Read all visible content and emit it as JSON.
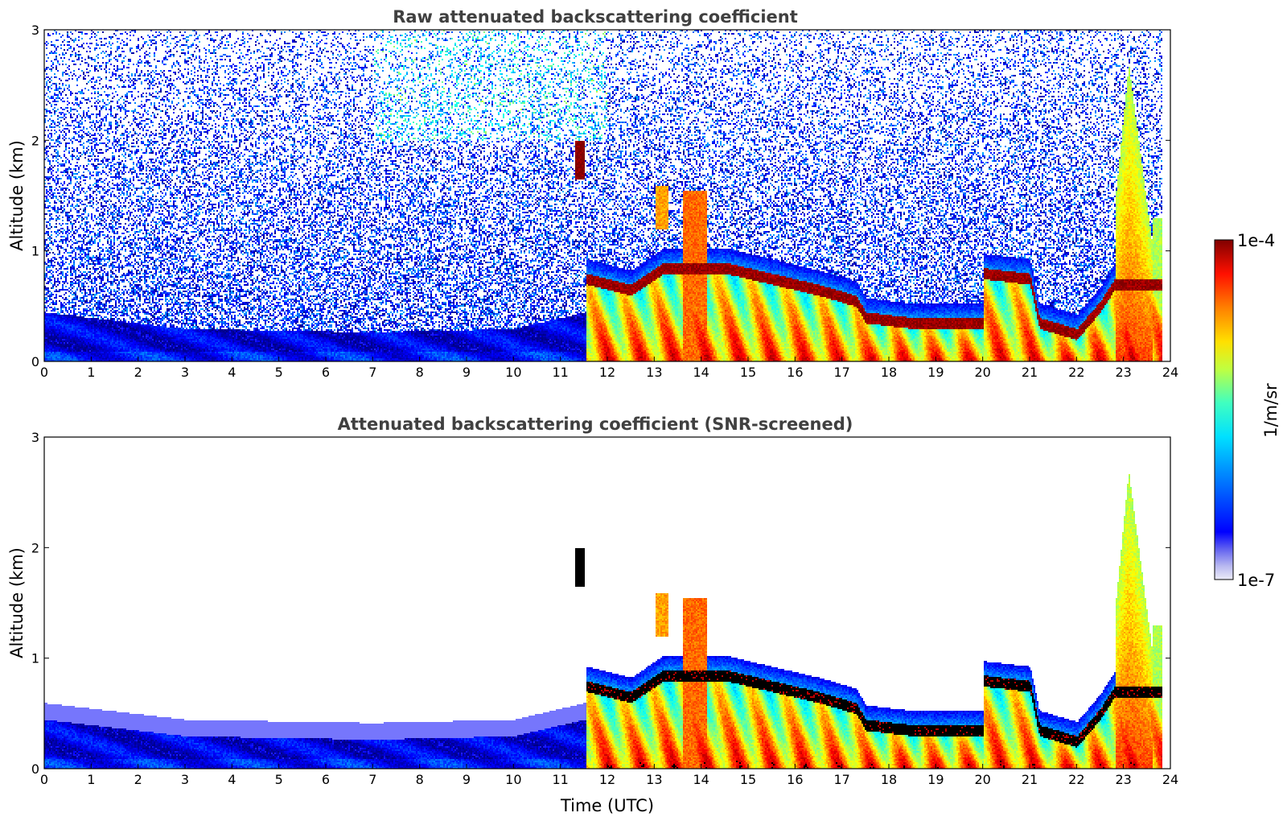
{
  "chart_data": [
    {
      "type": "heatmap",
      "title": "Raw attenuated backscattering coefficient",
      "xlabel": "",
      "ylabel": "Altitude (km)",
      "xlim": [
        0,
        24
      ],
      "ylim": [
        0,
        3
      ],
      "x_ticks": [
        "0",
        "1",
        "2",
        "3",
        "4",
        "5",
        "6",
        "7",
        "8",
        "9",
        "10",
        "11",
        "12",
        "13",
        "14",
        "15",
        "16",
        "17",
        "18",
        "19",
        "20",
        "21",
        "22",
        "23",
        "24"
      ],
      "y_ticks": [
        "0",
        "1",
        "2",
        "3"
      ],
      "screened": false
    },
    {
      "type": "heatmap",
      "title": "Attenuated backscattering coefficient (SNR-screened)",
      "xlabel": "Time (UTC)",
      "ylabel": "Altitude (km)",
      "xlim": [
        0,
        24
      ],
      "ylim": [
        0,
        3
      ],
      "x_ticks": [
        "0",
        "1",
        "2",
        "3",
        "4",
        "5",
        "6",
        "7",
        "8",
        "9",
        "10",
        "11",
        "12",
        "13",
        "14",
        "15",
        "16",
        "17",
        "18",
        "19",
        "20",
        "21",
        "22",
        "23",
        "24"
      ],
      "y_ticks": [
        "0",
        "1",
        "2",
        "3"
      ],
      "screened": true
    }
  ],
  "colorbar": {
    "label": "1/m/sr",
    "max_label": "1e-4",
    "min_label": "1e-7",
    "scale": "log",
    "colormap": "jet"
  },
  "features": {
    "data_end_hour": 23.8,
    "cloud_onset_hour": 11.55,
    "low_layer": [
      {
        "t": 0,
        "top": 0.45
      },
      {
        "t": 3,
        "top": 0.3
      },
      {
        "t": 7,
        "top": 0.27
      },
      {
        "t": 10,
        "top": 0.3
      },
      {
        "t": 11.5,
        "top": 0.45
      }
    ],
    "cloud_base": [
      {
        "t": 11.55,
        "h": 0.75
      },
      {
        "t": 12.5,
        "h": 0.65
      },
      {
        "t": 13.2,
        "h": 0.85
      },
      {
        "t": 13.8,
        "h": 0.85
      },
      {
        "t": 14.5,
        "h": 0.85
      },
      {
        "t": 15.5,
        "h": 0.75
      },
      {
        "t": 16.5,
        "h": 0.65
      },
      {
        "t": 17.3,
        "h": 0.55
      },
      {
        "t": 17.5,
        "h": 0.4
      },
      {
        "t": 18.5,
        "h": 0.35
      },
      {
        "t": 20.0,
        "h": 0.35
      },
      {
        "t": 20.0,
        "h": 0.8
      },
      {
        "t": 21.0,
        "h": 0.75
      },
      {
        "t": 21.2,
        "h": 0.35
      },
      {
        "t": 22.0,
        "h": 0.25
      },
      {
        "t": 22.5,
        "h": 0.5
      },
      {
        "t": 22.8,
        "h": 0.7
      }
    ],
    "aerosol_plume": {
      "t_start": 11.3,
      "t_end": 11.5,
      "h_bottom": 1.65,
      "h_top": 2.0
    },
    "plume_top": [
      {
        "t": 22.8,
        "h": 1.4
      },
      {
        "t": 23.1,
        "h": 2.7
      },
      {
        "t": 23.5,
        "h": 1.4
      }
    ]
  }
}
